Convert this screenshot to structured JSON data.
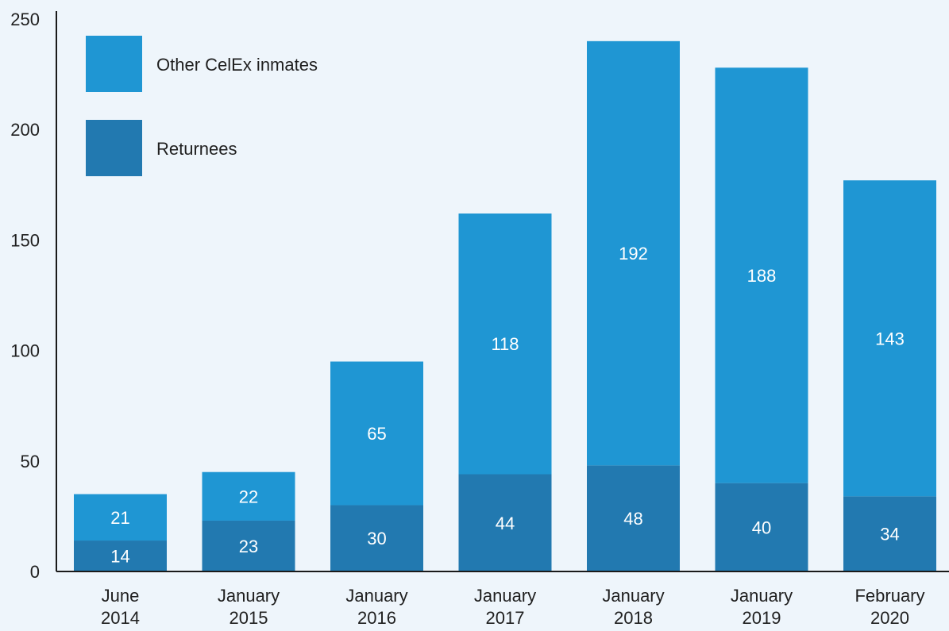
{
  "chart_data": {
    "type": "bar",
    "stacked": true,
    "categories": [
      [
        "June",
        "2014"
      ],
      [
        "January",
        "2015"
      ],
      [
        "January",
        "2016"
      ],
      [
        "January",
        "2017"
      ],
      [
        "January",
        "2018"
      ],
      [
        "January",
        "2019"
      ],
      [
        "February",
        "2020"
      ]
    ],
    "series": [
      {
        "name": "Returnees",
        "color": "#2279b0",
        "values": [
          14,
          23,
          30,
          44,
          48,
          40,
          34
        ]
      },
      {
        "name": "Other CelEx inmates",
        "color": "#1f96d3",
        "values": [
          21,
          22,
          65,
          118,
          192,
          188,
          143
        ]
      }
    ],
    "legend_order": [
      "Other CelEx inmates",
      "Returnees"
    ],
    "legend_position": "top-left",
    "ylim": [
      0,
      250
    ],
    "yticks": [
      0,
      50,
      100,
      150,
      200,
      250
    ],
    "grid": false,
    "title": "",
    "xlabel": "",
    "ylabel": ""
  }
}
